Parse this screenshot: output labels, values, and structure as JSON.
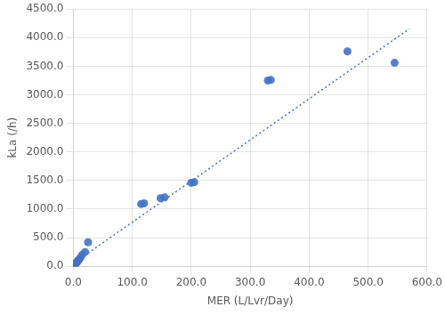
{
  "chart_data": {
    "type": "scatter",
    "xlabel": "MER (L/Lvr/Day)",
    "ylabel": "kLa (/h)",
    "series": [
      {
        "type": "scatter",
        "color": "#4472C4",
        "x": [
          0.5,
          1.0,
          1.5,
          2.0,
          2.5,
          3.0,
          3.5,
          4.0,
          5.0,
          6.0,
          7.0,
          8.0,
          10.0,
          12.0,
          15.0,
          20.0,
          25.0,
          115.0,
          120.0,
          148.0,
          155.0,
          200.0,
          205.0,
          330.0,
          335.0,
          465.0,
          545.0
        ],
        "values": [
          10.0,
          15.0,
          20.0,
          25.0,
          30.0,
          35.0,
          40.0,
          50.0,
          60.0,
          70.0,
          80.0,
          100.0,
          120.0,
          150.0,
          200.0,
          250.0,
          420.0,
          1090.0,
          1100.0,
          1190.0,
          1205.0,
          1460.0,
          1470.0,
          3250.0,
          3260.0,
          3760.0,
          3560.0
        ]
      },
      {
        "type": "line",
        "line_style": "dotted",
        "color": "#4472C4",
        "x": [
          0.0,
          570.0
        ],
        "values": [
          50.0,
          4154.0
        ]
      }
    ],
    "xlim": [
      0.0,
      600.0
    ],
    "ylim": [
      0.0,
      4500.0
    ],
    "xticks": [
      {
        "value": 0,
        "label": "0.0"
      },
      {
        "value": 100,
        "label": "100.0"
      },
      {
        "value": 200,
        "label": "200.0"
      },
      {
        "value": 300,
        "label": "300.0"
      },
      {
        "value": 400,
        "label": "400.0"
      },
      {
        "value": 500,
        "label": "500.0"
      },
      {
        "value": 600,
        "label": "600.0"
      }
    ],
    "yticks": [
      {
        "value": 0,
        "label": "0.0"
      },
      {
        "value": 500,
        "label": "500.0"
      },
      {
        "value": 1000,
        "label": "1000.0"
      },
      {
        "value": 1500,
        "label": "1500.0"
      },
      {
        "value": 2000,
        "label": "2000.0"
      },
      {
        "value": 2500,
        "label": "2500.0"
      },
      {
        "value": 3000,
        "label": "3000.0"
      },
      {
        "value": 3500,
        "label": "3500.0"
      },
      {
        "value": 4000,
        "label": "4000.0"
      },
      {
        "value": 4500,
        "label": "4500.0"
      }
    ],
    "grid": true
  }
}
